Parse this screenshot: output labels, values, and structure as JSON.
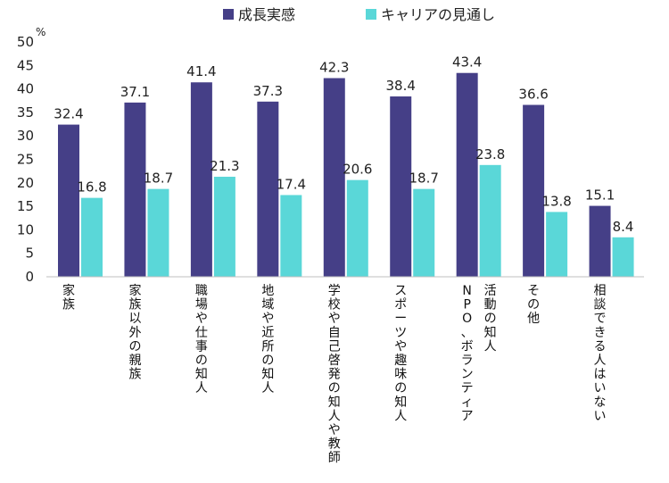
{
  "chart_data": {
    "type": "bar",
    "unit": "%",
    "ylim": [
      0,
      50
    ],
    "yticks": [
      0,
      5,
      10,
      15,
      20,
      25,
      30,
      35,
      40,
      45,
      50
    ],
    "grid": false,
    "legend_position": "top",
    "categories": [
      [
        "家族"
      ],
      [
        "家族以外の親族"
      ],
      [
        "職場や仕事の知人"
      ],
      [
        "地域や近所の知人"
      ],
      [
        "学校や自己啓発の知人や教師"
      ],
      [
        "スポーツや趣味の知人"
      ],
      [
        "NPO、ボランティア",
        "活動の知人"
      ],
      [
        "その他"
      ],
      [
        "相談できる人はいない"
      ]
    ],
    "series": [
      {
        "name": "成長実感",
        "color": "#453f87",
        "values": [
          32.4,
          37.1,
          41.4,
          37.3,
          42.3,
          38.4,
          43.4,
          36.6,
          15.1
        ]
      },
      {
        "name": "キャリアの見通し",
        "color": "#5ad7d8",
        "values": [
          16.8,
          18.7,
          21.3,
          17.4,
          20.6,
          18.7,
          23.8,
          13.8,
          8.4
        ]
      }
    ]
  }
}
